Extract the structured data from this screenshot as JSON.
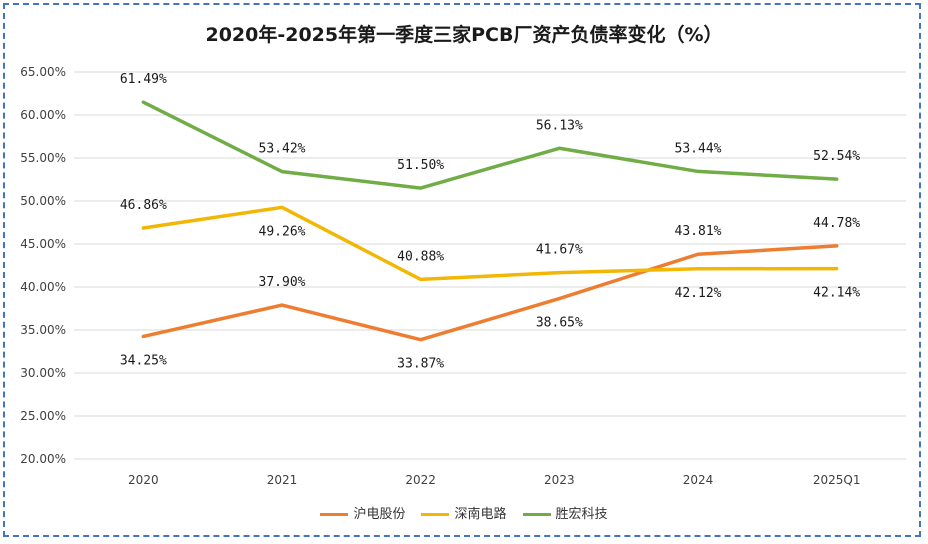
{
  "chart_data": {
    "type": "line",
    "title": "2020年-2025年第一季度三家PCB厂资产负债率变化（%）",
    "categories": [
      "2020",
      "2021",
      "2022",
      "2023",
      "2024",
      "2025Q1"
    ],
    "y_ticks": [
      "20.00%",
      "25.00%",
      "30.00%",
      "35.00%",
      "40.00%",
      "45.00%",
      "50.00%",
      "55.00%",
      "60.00%",
      "65.00%"
    ],
    "ylim": [
      20,
      65
    ],
    "grid": true,
    "legend_position": "bottom",
    "series": [
      {
        "name": "沪电股份",
        "color": "#ed7d31",
        "values": [
          34.25,
          37.9,
          33.87,
          38.65,
          43.81,
          44.78
        ],
        "labels": [
          "34.25%",
          "37.90%",
          "33.87%",
          "38.65%",
          "43.81%",
          "44.78%"
        ]
      },
      {
        "name": "深南电路",
        "color": "#f2b705",
        "values": [
          46.86,
          49.26,
          40.88,
          41.67,
          42.12,
          42.14
        ],
        "labels": [
          "46.86%",
          "49.26%",
          "40.88%",
          "41.67%",
          "42.12%",
          "42.14%"
        ]
      },
      {
        "name": "胜宏科技",
        "color": "#70ad47",
        "values": [
          61.49,
          53.42,
          51.5,
          56.13,
          53.44,
          52.54
        ],
        "labels": [
          "61.49%",
          "53.42%",
          "51.50%",
          "56.13%",
          "53.44%",
          "52.54%"
        ]
      }
    ]
  }
}
